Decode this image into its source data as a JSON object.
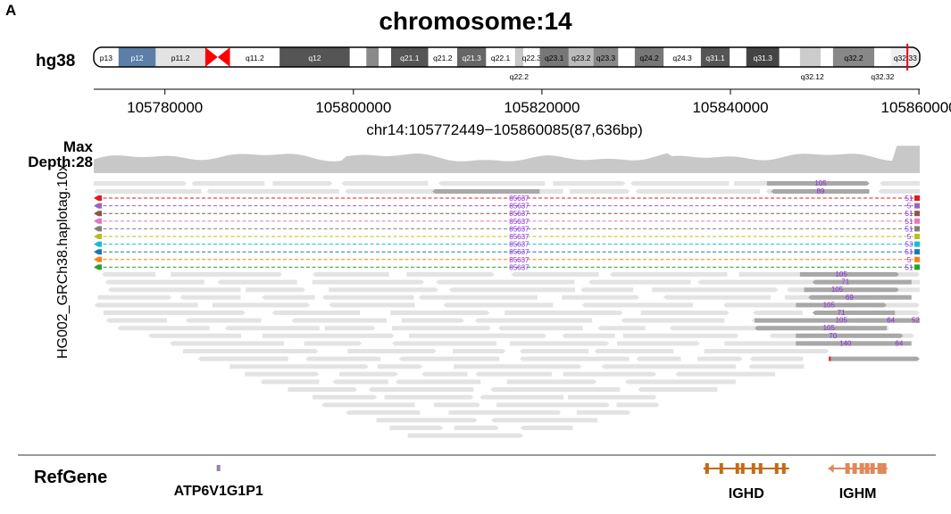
{
  "panel_letter": "A",
  "chromosome_title": "chromosome:14",
  "genome": "hg38",
  "ideogram": {
    "upper_bands": [
      {
        "label": "p13",
        "start": 0,
        "end": 0.03,
        "fill": "#ffffff"
      },
      {
        "label": "p12",
        "start": 0.03,
        "end": 0.075,
        "fill": "#5b7fa8"
      },
      {
        "label": "p11.2",
        "start": 0.075,
        "end": 0.135,
        "fill": "#e3e3e3"
      },
      {
        "label": "",
        "start": 0.135,
        "end": 0.165,
        "fill": "#ff0000"
      },
      {
        "label": "q11.2",
        "start": 0.165,
        "end": 0.225,
        "fill": "#ffffff"
      },
      {
        "label": "q12",
        "start": 0.225,
        "end": 0.31,
        "fill": "#555555"
      },
      {
        "label": "",
        "start": 0.31,
        "end": 0.33,
        "fill": "#ffffff"
      },
      {
        "label": "",
        "start": 0.33,
        "end": 0.345,
        "fill": "#8a8a8a"
      },
      {
        "label": "",
        "start": 0.345,
        "end": 0.36,
        "fill": "#ffffff"
      },
      {
        "label": "q21.1",
        "start": 0.36,
        "end": 0.405,
        "fill": "#555555"
      },
      {
        "label": "q21.2",
        "start": 0.405,
        "end": 0.44,
        "fill": "#ffffff"
      },
      {
        "label": "q21.3",
        "start": 0.44,
        "end": 0.475,
        "fill": "#666666"
      },
      {
        "label": "q22.1",
        "start": 0.475,
        "end": 0.51,
        "fill": "#ffffff"
      },
      {
        "label": "",
        "start": 0.51,
        "end": 0.52,
        "fill": "#c8c8c8"
      },
      {
        "label": "q22.3",
        "start": 0.52,
        "end": 0.54,
        "fill": "#ffffff"
      },
      {
        "label": "q23.1",
        "start": 0.54,
        "end": 0.575,
        "fill": "#777777"
      },
      {
        "label": "q23.2",
        "start": 0.575,
        "end": 0.605,
        "fill": "#bbbbbb"
      },
      {
        "label": "q23.3",
        "start": 0.605,
        "end": 0.635,
        "fill": "#888888"
      },
      {
        "label": "",
        "start": 0.635,
        "end": 0.655,
        "fill": "#ffffff"
      },
      {
        "label": "q24.2",
        "start": 0.655,
        "end": 0.69,
        "fill": "#777777"
      },
      {
        "label": "q24.3",
        "start": 0.69,
        "end": 0.735,
        "fill": "#ffffff"
      },
      {
        "label": "q31.1",
        "start": 0.735,
        "end": 0.77,
        "fill": "#555555"
      },
      {
        "label": "",
        "start": 0.77,
        "end": 0.79,
        "fill": "#ffffff"
      },
      {
        "label": "q31.3",
        "start": 0.79,
        "end": 0.83,
        "fill": "#444444"
      },
      {
        "label": "",
        "start": 0.83,
        "end": 0.855,
        "fill": "#ffffff"
      },
      {
        "label": "",
        "start": 0.855,
        "end": 0.88,
        "fill": "#cccccc"
      },
      {
        "label": "",
        "start": 0.88,
        "end": 0.895,
        "fill": "#ffffff"
      },
      {
        "label": "q32.2",
        "start": 0.895,
        "end": 0.945,
        "fill": "#888888"
      },
      {
        "label": "",
        "start": 0.945,
        "end": 0.965,
        "fill": "#ffffff"
      },
      {
        "label": "q32.33",
        "start": 0.965,
        "end": 1.0,
        "fill": "#eeeeee"
      }
    ],
    "lower_labels": [
      {
        "label": "q22.2",
        "pos": 0.515
      },
      {
        "label": "q32.12",
        "pos": 0.87
      },
      {
        "label": "q32.32",
        "pos": 0.955
      }
    ],
    "highlight_pos": 0.985
  },
  "axis": {
    "ticks": [
      105780000,
      105800000,
      105820000,
      105840000,
      105860000
    ],
    "range": [
      105772449,
      105860085
    ]
  },
  "region_label": "chr14:105772449−105860085(87,636bp)",
  "depth": {
    "line1": "Max",
    "line2": "Depth:28",
    "max": 28
  },
  "sample": "HG002_GRCh38.haplotag.10x",
  "split_reads": [
    {
      "label": "85637",
      "color": "#e41a1c",
      "end_label": "51"
    },
    {
      "label": "85637",
      "color": "#9467bd",
      "end_label": "5"
    },
    {
      "label": "85637",
      "color": "#8c564b",
      "end_label": "51"
    },
    {
      "label": "85637",
      "color": "#e377c2",
      "end_label": "51"
    },
    {
      "label": "85637",
      "color": "#7f7f7f",
      "end_label": "51"
    },
    {
      "label": "85637",
      "color": "#bcbd22",
      "end_label": "5"
    },
    {
      "label": "85637",
      "color": "#17becf",
      "end_label": "53"
    },
    {
      "label": "85637",
      "color": "#1f77b4",
      "end_label": "51"
    },
    {
      "label": "85637",
      "color": "#ff7f0e",
      "end_label": "5"
    },
    {
      "label": "85637",
      "color": "#2ca02c",
      "end_label": "51"
    }
  ],
  "top_read_labels": [
    {
      "label": "105",
      "row": 0
    },
    {
      "label": "89",
      "row": 1
    }
  ],
  "dark_read_labels": [
    {
      "label": "105",
      "x": 0.905,
      "row": 0
    },
    {
      "label": "71",
      "x": 0.91,
      "row": 1
    },
    {
      "label": "105",
      "x": 0.9,
      "row": 2
    },
    {
      "label": "69",
      "x": 0.915,
      "row": 3
    },
    {
      "label": "105",
      "x": 0.89,
      "row": 4
    },
    {
      "label": "71",
      "x": 0.905,
      "row": 5
    },
    {
      "label": "105",
      "x": 0.905,
      "row": 6
    },
    {
      "label": "64",
      "x": 0.965,
      "row": 6
    },
    {
      "label": "52",
      "x": 0.995,
      "row": 6
    },
    {
      "label": "105",
      "x": 0.89,
      "row": 7
    },
    {
      "label": "70",
      "x": 0.895,
      "row": 8
    },
    {
      "label": "140",
      "x": 0.91,
      "row": 9
    },
    {
      "label": "64",
      "x": 0.975,
      "row": 9
    }
  ],
  "refgene": {
    "title": "RefGene",
    "genes": [
      {
        "name": "ATP6V1G1P1",
        "pos": 0.151,
        "color": "#9a7fb8"
      },
      {
        "name": "IGHD",
        "pos": 0.79,
        "color": "#c46a18"
      },
      {
        "name": "IGHM",
        "pos": 0.925,
        "color": "#e0885a"
      }
    ]
  },
  "colors": {
    "read": "#e3e3e3",
    "read_dark": "#a8a8a8",
    "coverage": "#c8c8c8",
    "label_text": "#8a2be2"
  }
}
